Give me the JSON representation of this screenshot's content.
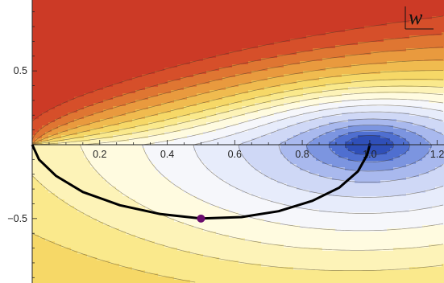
{
  "chart_data": {
    "type": "contour",
    "title": "",
    "corner_label": "w",
    "xlim": [
      0.0,
      1.22
    ],
    "ylim": [
      -0.8,
      0.98
    ],
    "x_ticks": [
      {
        "value": 0.2,
        "label": "0.2"
      },
      {
        "value": 0.4,
        "label": "0.4"
      },
      {
        "value": 0.6,
        "label": "0.6"
      },
      {
        "value": 0.8,
        "label": "0.8"
      },
      {
        "value": 1.0,
        "label": "1.0"
      },
      {
        "value": 1.2,
        "label": "1.2"
      }
    ],
    "y_ticks": [
      {
        "value": 0.5,
        "label": "0.5"
      },
      {
        "value": -0.5,
        "label": "−0.5"
      }
    ],
    "contour_field": {
      "description_free_params": true,
      "levels": [
        -1.6,
        -1.25,
        -0.95,
        -0.7,
        -0.45,
        -0.25,
        -0.08,
        0.08,
        0.22,
        0.36,
        0.52,
        0.7,
        0.9,
        1.1,
        1.35
      ],
      "fill_colors": [
        "#2f4fb8",
        "#4f6fd0",
        "#7c95e0",
        "#a9b9ee",
        "#cfd8f6",
        "#e7ecfb",
        "#f6f7fb",
        "#fffbe0",
        "#fdf3b8",
        "#fae98c",
        "#f6d867",
        "#f0bb4f",
        "#e99a3e",
        "#df7632",
        "#d64f2a",
        "#cc3a26"
      ]
    },
    "path": {
      "color": "#000000",
      "points": [
        [
          0.0,
          0.0
        ],
        [
          0.02,
          -0.1
        ],
        [
          0.07,
          -0.21
        ],
        [
          0.15,
          -0.32
        ],
        [
          0.26,
          -0.41
        ],
        [
          0.38,
          -0.47
        ],
        [
          0.5,
          -0.5
        ],
        [
          0.62,
          -0.49
        ],
        [
          0.73,
          -0.45
        ],
        [
          0.83,
          -0.38
        ],
        [
          0.91,
          -0.29
        ],
        [
          0.965,
          -0.18
        ],
        [
          0.992,
          -0.07
        ],
        [
          1.0,
          0.0
        ]
      ]
    },
    "marker": {
      "x": 0.5,
      "y": -0.5,
      "color": "#6a0d6e"
    },
    "singular_point": {
      "x": 1.0,
      "y": 0.0
    }
  }
}
